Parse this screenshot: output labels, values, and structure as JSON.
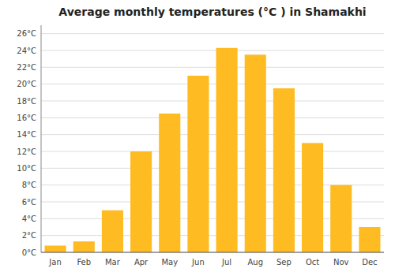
{
  "chart_data": {
    "type": "bar",
    "title": "Average monthly temperatures (°C ) in Shamakhi",
    "categories": [
      "Jan",
      "Feb",
      "Mar",
      "Apr",
      "May",
      "Jun",
      "Jul",
      "Aug",
      "Sep",
      "Oct",
      "Nov",
      "Dec"
    ],
    "values": [
      0.8,
      1.3,
      5.0,
      12.0,
      16.5,
      21.0,
      24.3,
      23.5,
      19.5,
      13.0,
      8.0,
      3.0
    ],
    "color": "#FFBB22",
    "ylim": [
      0,
      27
    ],
    "yticks": [
      {
        "value": 0,
        "label": "0°C"
      },
      {
        "value": 2,
        "label": "2°C"
      },
      {
        "value": 4,
        "label": "4°C"
      },
      {
        "value": 6,
        "label": "6°C"
      },
      {
        "value": 8,
        "label": "8°C"
      },
      {
        "value": 10,
        "label": "10°C"
      },
      {
        "value": 12,
        "label": "12°C"
      },
      {
        "value": 14,
        "label": "14°C"
      },
      {
        "value": 16,
        "label": "16°C"
      },
      {
        "value": 18,
        "label": "18°C"
      },
      {
        "value": 20,
        "label": "20°C"
      },
      {
        "value": 22,
        "label": "22°C"
      },
      {
        "value": 24,
        "label": "24°C"
      },
      {
        "value": 26,
        "label": "26°C"
      }
    ],
    "grid": true
  }
}
